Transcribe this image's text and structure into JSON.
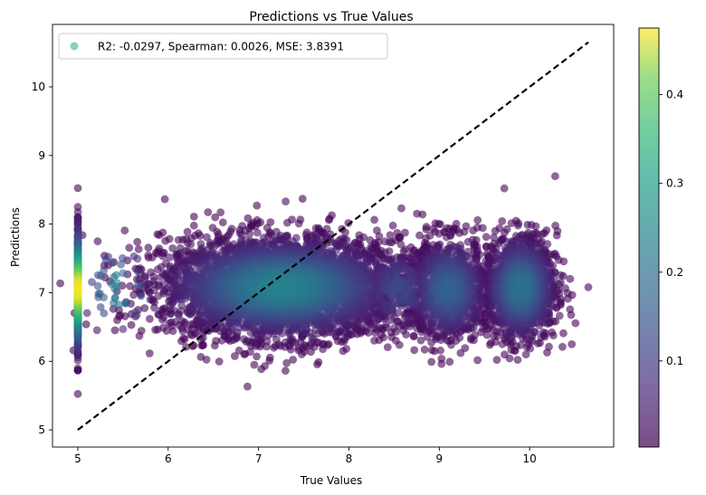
{
  "chart_data": {
    "type": "scatter",
    "title": "Predictions vs True Values",
    "xlabel": "True Values",
    "ylabel": "Predictions",
    "xlim": [
      4.72,
      10.93
    ],
    "ylim": [
      4.75,
      10.91
    ],
    "xticks": [
      5,
      6,
      7,
      8,
      9,
      10
    ],
    "yticks": [
      5,
      6,
      7,
      8,
      9,
      10
    ],
    "legend": {
      "label": "R2: -0.0297, Spearman: 0.0026, MSE: 3.8391",
      "placement": "top-left"
    },
    "colorbar": {
      "colormap": "viridis",
      "range": [
        0.003,
        0.475
      ],
      "ticks": [
        0.1,
        0.2,
        0.3,
        0.4
      ],
      "tick_labels": [
        "0.1",
        "0.2",
        "0.3",
        "0.4"
      ]
    },
    "reference_line": {
      "x": [
        5.0,
        10.65
      ],
      "y": [
        5.0,
        10.65
      ],
      "style": "dashed",
      "color": "#000000"
    },
    "clusters": [
      {
        "x_mean": 5.0,
        "x_sd": 0.0,
        "y_mean": 7.05,
        "y_sd": 0.45,
        "n": 420,
        "density_peak": 0.47
      },
      {
        "x_mean": 5.45,
        "x_sd": 0.22,
        "y_mean": 7.05,
        "y_sd": 0.35,
        "n": 45,
        "density_peak": 0.25
      },
      {
        "x_mean": 7.25,
        "x_sd": 0.65,
        "y_mean": 7.08,
        "y_sd": 0.36,
        "n": 4200,
        "density_peak": 0.24
      },
      {
        "x_mean": 8.55,
        "x_sd": 0.22,
        "y_mean": 7.05,
        "y_sd": 0.33,
        "n": 260,
        "density_peak": 0.12
      },
      {
        "x_mean": 9.1,
        "x_sd": 0.22,
        "y_mean": 7.05,
        "y_sd": 0.37,
        "n": 950,
        "density_peak": 0.17
      },
      {
        "x_mean": 9.9,
        "x_sd": 0.2,
        "y_mean": 7.07,
        "y_sd": 0.38,
        "n": 1300,
        "density_peak": 0.2
      }
    ],
    "outliers": [
      {
        "x": 10.65,
        "y": 7.08
      },
      {
        "x": 5.0,
        "y": 5.87
      },
      {
        "x": 5.0,
        "y": 8.25
      },
      {
        "x": 5.22,
        "y": 7.75
      },
      {
        "x": 9.72,
        "y": 8.52
      },
      {
        "x": 7.3,
        "y": 8.33
      },
      {
        "x": 7.07,
        "y": 5.93
      },
      {
        "x": 6.58,
        "y": 8.17
      }
    ],
    "grid": false,
    "alpha": 0.6,
    "marker_style": "circle"
  }
}
